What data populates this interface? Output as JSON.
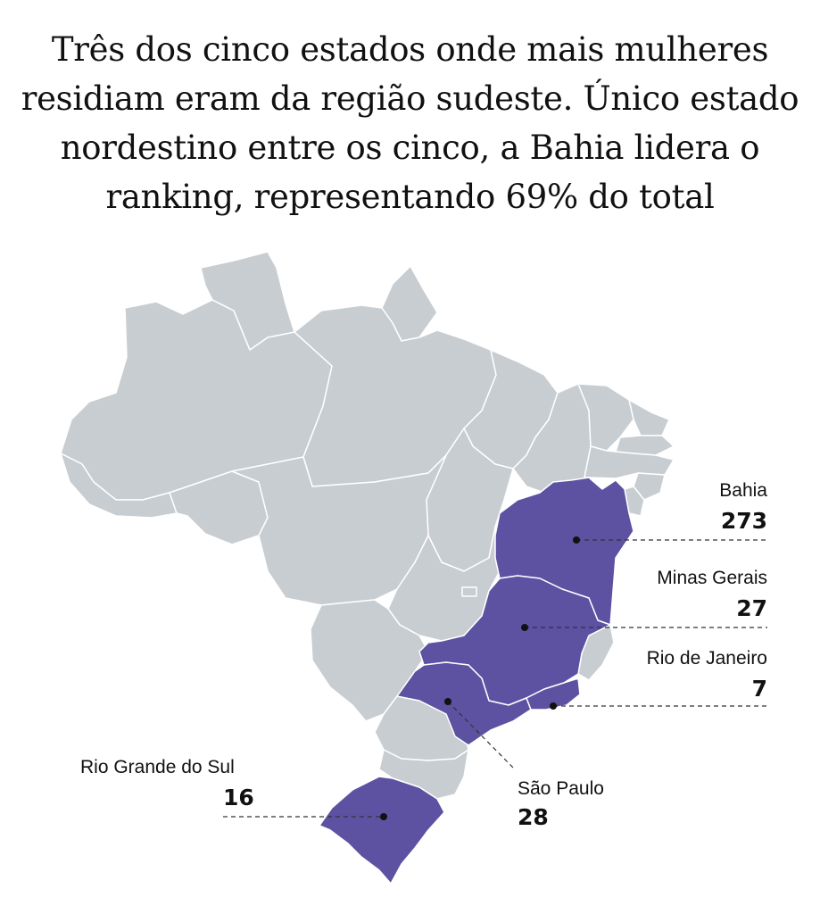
{
  "title": {
    "lines": [
      "Três dos cinco estados onde mais mulheres",
      "residiam eram da região sudeste. Único estado",
      "nordestino entre os cinco, a Bahia lidera o",
      "ranking, representando 69% do total"
    ]
  },
  "map": {
    "highlight_color": "#5d51a2",
    "base_color": "#c8cdd1",
    "callouts": {
      "bahia": {
        "name": "Bahia",
        "value": "273"
      },
      "minas": {
        "name": "Minas Gerais",
        "value": "27"
      },
      "rio": {
        "name": "Rio de Janeiro",
        "value": "7"
      },
      "saopaulo": {
        "name": "São Paulo",
        "value": "28"
      },
      "rs": {
        "name": "Rio Grande do Sul",
        "value": "16"
      }
    }
  }
}
